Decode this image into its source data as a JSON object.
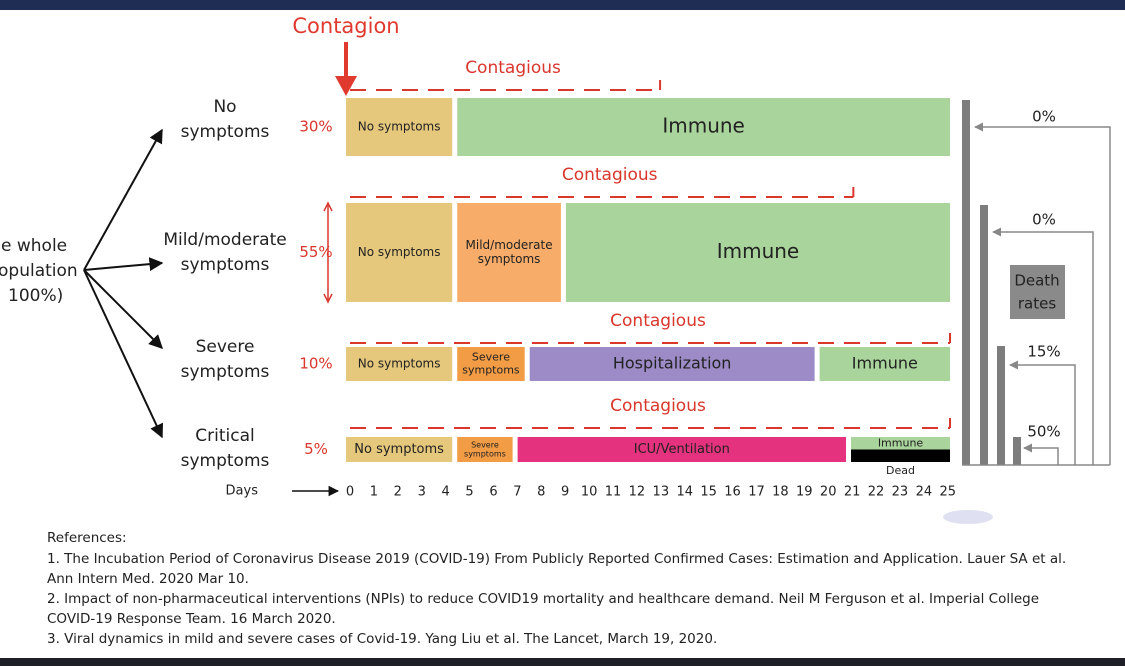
{
  "header": {
    "title": "Contagion"
  },
  "population": [
    "e whole",
    "opulation",
    "100%)"
  ],
  "rows": [
    {
      "label": [
        "No",
        "symptoms"
      ],
      "percent": "30%",
      "contagious": {
        "label": "Contagious",
        "end": 13
      },
      "segments": [
        {
          "lines": [
            "No symptoms"
          ],
          "start": 0,
          "end": 4.5,
          "color": "#e6c87c"
        },
        {
          "lines": [
            "Immune"
          ],
          "start": 4.5,
          "end": 25,
          "color": "#a9d49b"
        }
      ]
    },
    {
      "label": [
        "Mild/moderate",
        "symptoms"
      ],
      "percent": "55%",
      "contagious": {
        "label": "Contagious",
        "end": 21
      },
      "segments": [
        {
          "lines": [
            "No symptoms"
          ],
          "start": 0,
          "end": 4.5,
          "color": "#e6c87c"
        },
        {
          "lines": [
            "Mild/moderate",
            "symptoms"
          ],
          "start": 4.5,
          "end": 9,
          "color": "#f7ad69"
        },
        {
          "lines": [
            "Immune"
          ],
          "start": 9,
          "end": 25,
          "color": "#a9d49b"
        }
      ]
    },
    {
      "label": [
        "Severe",
        "symptoms"
      ],
      "percent": "10%",
      "contagious": {
        "label": "Contagious",
        "end": 25
      },
      "segments": [
        {
          "lines": [
            "No symptoms"
          ],
          "start": 0,
          "end": 4.5,
          "color": "#e6c87c"
        },
        {
          "lines": [
            "Severe",
            "symptoms"
          ],
          "start": 4.5,
          "end": 7.5,
          "color": "#f29c45"
        },
        {
          "lines": [
            "Hospitalization"
          ],
          "start": 7.5,
          "end": 19.5,
          "color": "#9c8bc6"
        },
        {
          "lines": [
            "Immune"
          ],
          "start": 19.5,
          "end": 25,
          "color": "#a9d49b"
        }
      ]
    },
    {
      "label": [
        "Critical",
        "symptoms"
      ],
      "percent": "5%",
      "contagious": {
        "label": "Contagious",
        "end": 25
      },
      "segments": [
        {
          "lines": [
            "No symptoms"
          ],
          "start": 0,
          "end": 4.5,
          "color": "#e6c87c"
        },
        {
          "lines": [
            "Severe",
            "symptoms"
          ],
          "start": 4.5,
          "end": 7,
          "color": "#f29c45"
        },
        {
          "lines": [
            "ICU/Ventilation"
          ],
          "start": 7,
          "end": 20.8,
          "color": "#e5327f"
        },
        {
          "lines": [
            "Immune"
          ],
          "start": 20.8,
          "end": 25,
          "color": "#a9d49b"
        },
        {
          "lines": [
            "Dead"
          ],
          "start": 20.8,
          "end": 25,
          "color": "#000000"
        }
      ]
    }
  ],
  "days": {
    "label": "Days",
    "ticks": [
      0,
      1,
      2,
      3,
      4,
      5,
      6,
      7,
      8,
      9,
      10,
      11,
      12,
      13,
      14,
      15,
      16,
      17,
      18,
      19,
      20,
      21,
      22,
      23,
      24,
      25
    ]
  },
  "death_rates": {
    "label": [
      "Death",
      "rates"
    ],
    "values": [
      "0%",
      "0%",
      "15%",
      "50%"
    ]
  },
  "references": {
    "title": "References:",
    "items": [
      [
        "1. The Incubation Period of Coronavirus Disease 2019 (COVID-19) From Publicly Reported Confirmed Cases: Estimation and Application. Lauer SA et al.",
        "Ann Intern Med. 2020 Mar 10."
      ],
      [
        "2. Impact of non-pharmaceutical interventions (NPIs) to reduce COVID19 mortality and healthcare demand. Neil M Ferguson et al. Imperial College",
        "COVID-19 Response Team. 16 March 2020."
      ],
      [
        "3. Viral dynamics in mild and severe cases of Covid-19. Yang Liu et al. The Lancet, March 19, 2020."
      ]
    ]
  }
}
